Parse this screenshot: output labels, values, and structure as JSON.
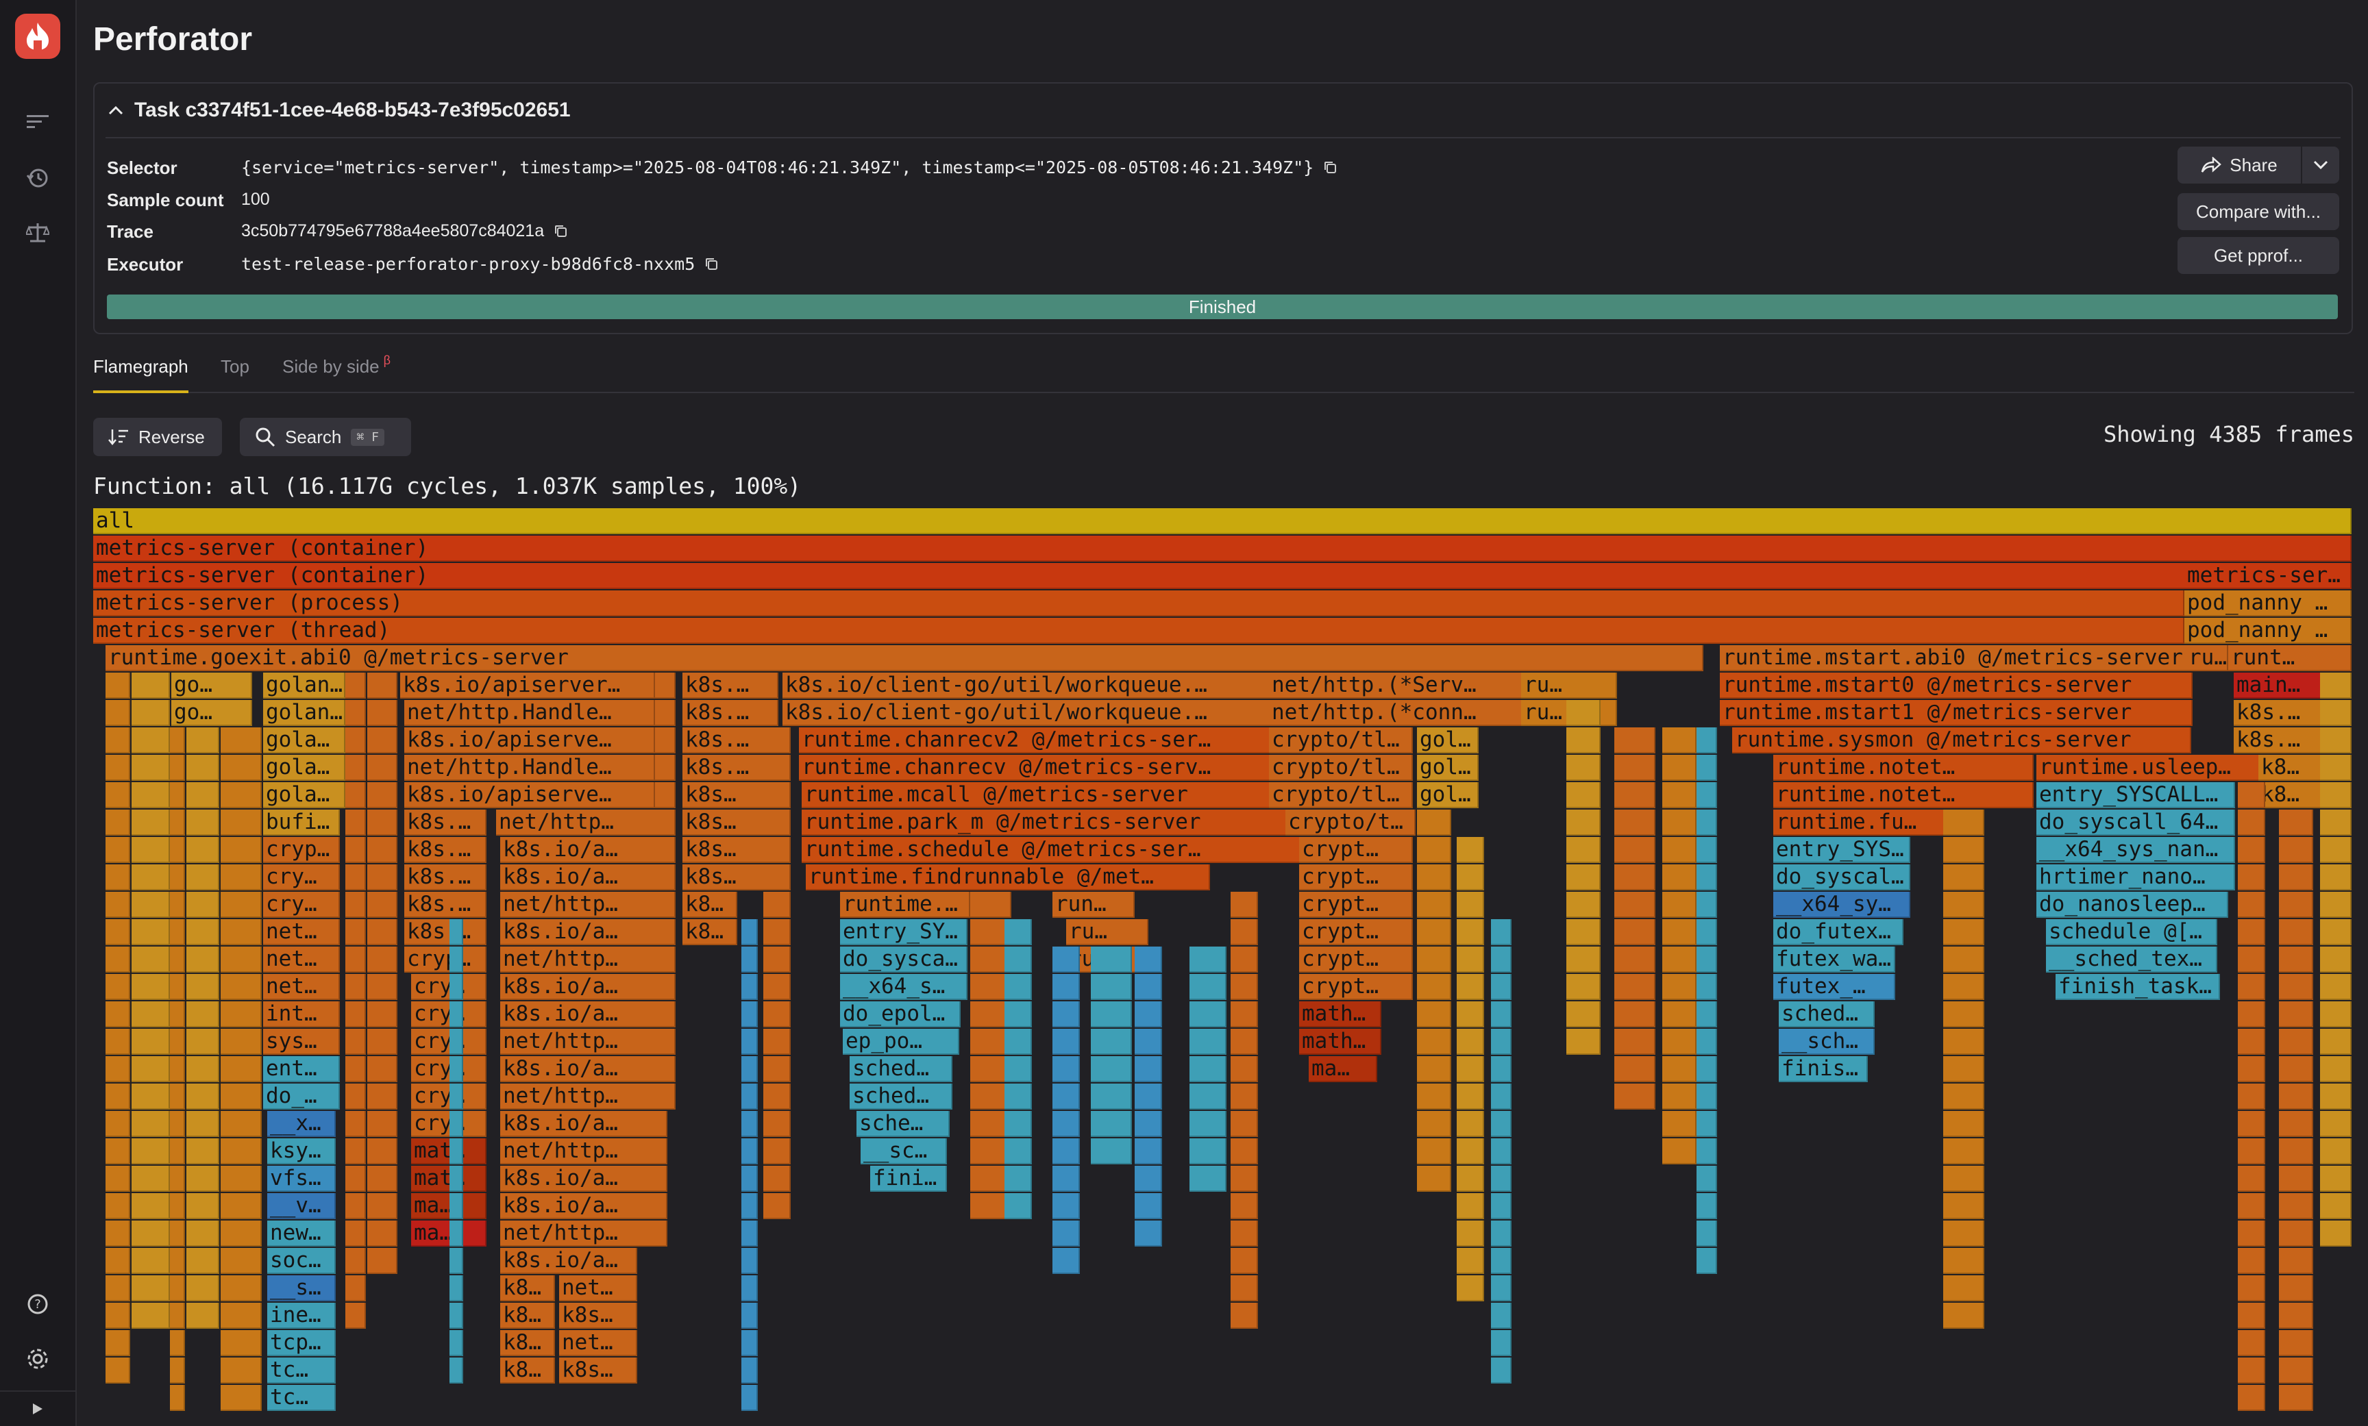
{
  "app": {
    "title": "Perforator"
  },
  "sidebar": {
    "icons": [
      "flamegraph-list-icon",
      "history-icon",
      "compare-scale-icon",
      "help-icon",
      "settings-icon",
      "expand-icon"
    ]
  },
  "task": {
    "heading": "Task c3374f51-1cee-4e68-b543-7e3f95c02651",
    "fields": [
      {
        "key": "Selector",
        "value": "{service=\"metrics-server\", timestamp>=\"2025-08-04T08:46:21.349Z\", timestamp<=\"2025-08-05T08:46:21.349Z\"}"
      },
      {
        "key": "Sample count",
        "value": "100"
      },
      {
        "key": "Trace",
        "value": "3c50b774795e67788a4ee5807c84021a"
      },
      {
        "key": "Executor",
        "value": "test-release-perforator-proxy-b98d6fc8-nxxm5"
      }
    ],
    "share_label": "Share",
    "compare_label": "Compare with...",
    "pprof_label": "Get pprof...",
    "status": "Finished"
  },
  "tabs": [
    {
      "label": "Flamegraph",
      "active": true
    },
    {
      "label": "Top",
      "active": false
    },
    {
      "label": "Side by side",
      "active": false,
      "badge": "β"
    }
  ],
  "toolbar": {
    "reverse_label": "Reverse",
    "search_label": "Search",
    "search_shortcut": "⌘ F",
    "showing": "Showing 4385 frames"
  },
  "flamegraph": {
    "function_line": "Function: all (16.117G cycles, 1.037K samples, 100%)",
    "labels": {
      "all": "all",
      "container": "metrics-server (container)",
      "process": "metrics-server (process)",
      "thread": "metrics-server (thread)",
      "msr_short": "metrics-ser…",
      "pod_nanny": "pod_nanny …",
      "goexit": "runtime.goexit.abi0 @/metrics-server",
      "mstart": "runtime.mstart.abi0 @/metrics-server",
      "mstart0": "runtime.mstart0 @/metrics-server",
      "mstart1": "runtime.mstart1 @/metrics-server",
      "sysmon": "runtime.sysmon @/metrics-server",
      "ru": "ru…",
      "runt": "runt…",
      "main": "main…",
      "k8s_short": "k8s.…",
      "k8": "k8…",
      "go": "go…",
      "golan": "golan…",
      "gola": "gola…",
      "bufi": "bufi…",
      "cryp": "cryp…",
      "cry": "cry…",
      "net": "net…",
      "int": "int…",
      "sys": "sys…",
      "ent": "ent…",
      "do": "do_…",
      "x": "__x…",
      "ksy": "ksy…",
      "vfs": "vfs…",
      "v": "__v…",
      "new": "new…",
      "soc": "soc…",
      "s": "__s…",
      "ine": "ine…",
      "tcp": "tcp…",
      "tc": "tc…",
      "apiserver_long": "k8s.io/apiserver…",
      "nethttp_handle": "net/http.Handle…",
      "apiserve": "k8s.io/apiserve…",
      "k8s_dots": "k8s.…",
      "nethttp": "net/http…",
      "k8sioa": "k8s.io/a…",
      "netthttp2": "net/http…",
      "crypt_c": "cryp…",
      "mat": "mat…",
      "ma": "ma…",
      "k8s3": "k8s…",
      "workqueue": "k8s.io/client-go/util/workqueue.…",
      "chanrecv2": "runtime.chanrecv2 @/metrics-ser…",
      "chanrecv": "runtime.chanrecv @/metrics-serv…",
      "mcall": "runtime.mcall @/metrics-server",
      "park_m": "runtime.park_m @/metrics-server",
      "schedule": "runtime.schedule @/metrics-ser…",
      "findrunnable": "runtime.findrunnable @/met…",
      "runtime_dot": "runtime.…",
      "run": "run…",
      "entry_sy": "entry_SY…",
      "do_sysca": "do_sysca…",
      "x64_s": "__x64_s…",
      "do_epol": "do_epol…",
      "ep_po": "ep_po…",
      "sched": "sched…",
      "sche": "sche…",
      "sc": "__sc…",
      "fini": "fini…",
      "serv": "net/http.(*Serv…",
      "conn": "net/http.(*conn…",
      "cryptotl": "crypto/tl…",
      "cryptot": "crypto/t…",
      "gol": "gol…",
      "crypt": "crypt…",
      "math": "math…",
      "notet": "runtime.notet…",
      "fu": "runtime.fu…",
      "entry_sys": "entry_SYS…",
      "do_syscal": "do_syscal…",
      "x64_sy": "__x64_sy…",
      "do_futex": "do_futex…",
      "futex_wa": "futex_wa…",
      "futex": "futex_…",
      "sch": "__sch…",
      "finis": "finis…",
      "usleep": "runtime.usleep…",
      "entry_syscall": "entry_SYSCALL…",
      "do_syscall_64": "do_syscall_64…",
      "x64_sys_nan": "__x64_sys_nan…",
      "hrtimer": "hrtimer_nano…",
      "do_nanosleep": "do_nanosleep…",
      "schedule_at": "schedule @[…",
      "sched_tex": "__sched_tex…",
      "finish_task": "finish_task…"
    }
  }
}
